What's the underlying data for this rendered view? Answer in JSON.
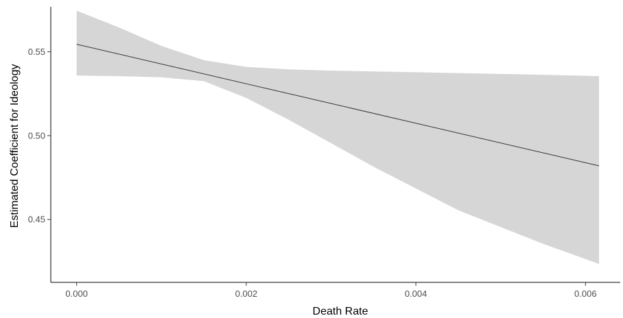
{
  "chart_data": {
    "type": "line",
    "title": "",
    "xlabel": "Death Rate",
    "ylabel": "Estimated Coefficient for Ideology",
    "xlim": [
      -0.000305,
      0.00641
    ],
    "ylim": [
      0.4125,
      0.5768
    ],
    "x_ticks": [
      0.0,
      0.002,
      0.004,
      0.006
    ],
    "x_tick_labels": [
      "0.000",
      "0.002",
      "0.004",
      "0.006"
    ],
    "y_ticks": [
      0.45,
      0.5,
      0.55
    ],
    "y_tick_labels": [
      "0.45",
      "0.50",
      "0.55"
    ],
    "grid": false,
    "legend": "none",
    "series": [
      {
        "type": "line",
        "color": "#333333",
        "x": [
          0.0,
          0.00616
        ],
        "y": [
          0.5545,
          0.482
        ]
      }
    ],
    "ribbon": {
      "color": "#d6d6d6",
      "x": [
        0.0,
        0.0005,
        0.001,
        0.0015,
        0.002,
        0.0025,
        0.003,
        0.0035,
        0.004,
        0.0045,
        0.005,
        0.0055,
        0.00616
      ],
      "upper": [
        0.5745,
        0.5645,
        0.5535,
        0.545,
        0.541,
        0.5395,
        0.5388,
        0.5383,
        0.5378,
        0.5373,
        0.5368,
        0.5363,
        0.5355
      ],
      "lower": [
        0.5358,
        0.5355,
        0.5348,
        0.5325,
        0.5225,
        0.5095,
        0.4955,
        0.4815,
        0.4685,
        0.4555,
        0.4455,
        0.4355,
        0.4235
      ]
    }
  }
}
